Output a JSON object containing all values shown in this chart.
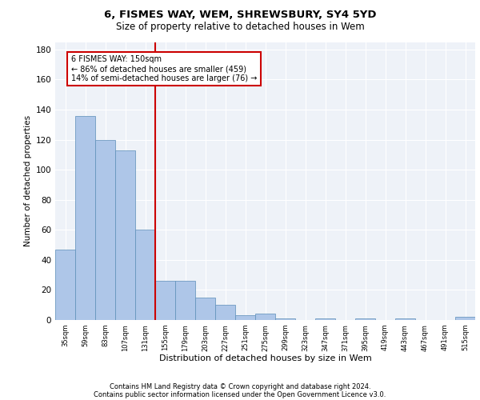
{
  "title1": "6, FISMES WAY, WEM, SHREWSBURY, SY4 5YD",
  "title2": "Size of property relative to detached houses in Wem",
  "xlabel": "Distribution of detached houses by size in Wem",
  "ylabel": "Number of detached properties",
  "categories": [
    "35sqm",
    "59sqm",
    "83sqm",
    "107sqm",
    "131sqm",
    "155sqm",
    "179sqm",
    "203sqm",
    "227sqm",
    "251sqm",
    "275sqm",
    "299sqm",
    "323sqm",
    "347sqm",
    "371sqm",
    "395sqm",
    "419sqm",
    "443sqm",
    "467sqm",
    "491sqm",
    "515sqm"
  ],
  "values": [
    47,
    136,
    120,
    113,
    60,
    26,
    26,
    15,
    10,
    3,
    4,
    1,
    0,
    1,
    0,
    1,
    0,
    1,
    0,
    0,
    2
  ],
  "bar_color": "#aec6e8",
  "bar_edge_color": "#5b8db8",
  "property_line_x": 4.5,
  "annotation_text": "6 FISMES WAY: 150sqm\n← 86% of detached houses are smaller (459)\n14% of semi-detached houses are larger (76) →",
  "annotation_box_color": "#ffffff",
  "annotation_box_edge_color": "#cc0000",
  "vline_color": "#cc0000",
  "ylim": [
    0,
    185
  ],
  "yticks": [
    0,
    20,
    40,
    60,
    80,
    100,
    120,
    140,
    160,
    180
  ],
  "footer1": "Contains HM Land Registry data © Crown copyright and database right 2024.",
  "footer2": "Contains public sector information licensed under the Open Government Licence v3.0.",
  "plot_bg_color": "#eef2f8"
}
